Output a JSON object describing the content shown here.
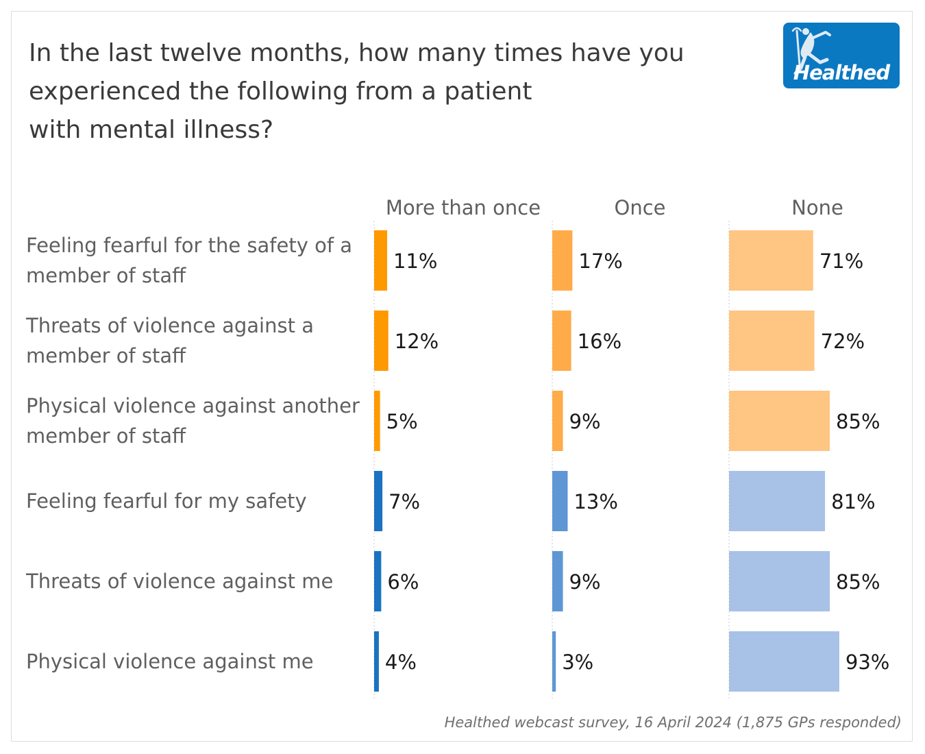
{
  "title_lines": [
    "In the last twelve months, how many times have you",
    "experienced the following from a patient",
    "with mental illness?"
  ],
  "logo": {
    "text": "Healthed",
    "color": "#0b78c2"
  },
  "source": "Healthed webcast survey, 16 April 2024 (1,875 GPs responded)",
  "colors": {
    "staff": [
      "#ff9900",
      "#ffab4a",
      "#ffc583"
    ],
    "self": [
      "#1a73c0",
      "#5e97d4",
      "#a8c1e6"
    ],
    "label_text": "#5f5f5f",
    "value_text": "#1a1a1a",
    "header_text": "#5f5f5f"
  },
  "chart_data": {
    "type": "bar",
    "orientation": "horizontal",
    "categories": [
      "Feeling fearful for the safety of a member of staff",
      "Threats of violence against a member of staff",
      "Physical violence against another member of staff",
      "Feeling fearful for my safety",
      "Threats of violence against me",
      "Physical violence against me"
    ],
    "category_lines": [
      [
        "Feeling fearful for the safety of a",
        "member of staff"
      ],
      [
        "Threats of violence against a",
        "member of staff"
      ],
      [
        "Physical violence against another",
        "member of staff"
      ],
      [
        "Feeling fearful for my safety"
      ],
      [
        "Threats of violence against me"
      ],
      [
        "Physical violence against me"
      ]
    ],
    "series": [
      {
        "name": "More than once",
        "values": [
          11,
          12,
          5,
          7,
          6,
          4
        ]
      },
      {
        "name": "Once",
        "values": [
          17,
          16,
          9,
          13,
          9,
          3
        ]
      },
      {
        "name": "None",
        "values": [
          71,
          72,
          85,
          81,
          85,
          93
        ]
      }
    ],
    "value_format": "{v}%",
    "panel_max": 100,
    "grid": false
  }
}
